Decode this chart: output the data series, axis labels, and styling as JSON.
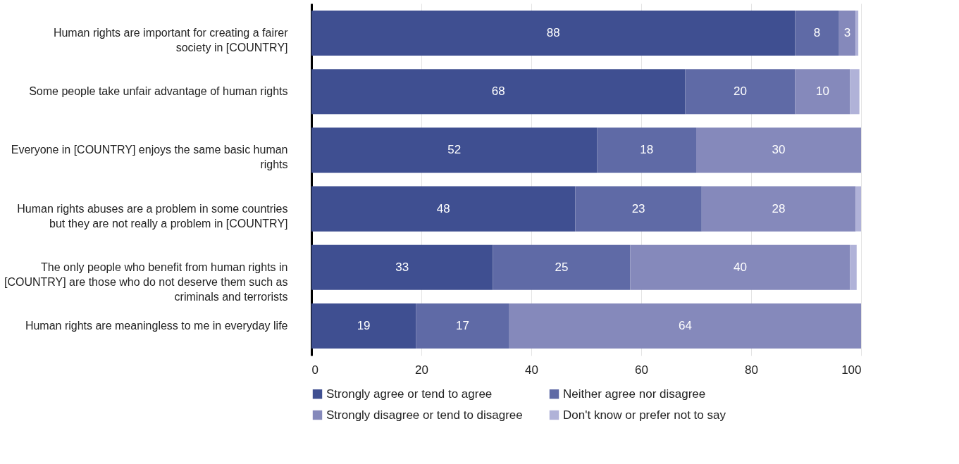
{
  "chart_data": {
    "type": "bar",
    "orientation": "horizontal",
    "stacked": true,
    "categories": [
      "Human rights are important for creating a fairer society in [COUNTRY]",
      "Some people take unfair advantage of human rights",
      "Everyone in [COUNTRY] enjoys the same basic human rights",
      "Human rights abuses are a problem in some countries but they are not really a problem in [COUNTRY]",
      "The only people who benefit from human rights in [COUNTRY] are those who do not deserve them such as criminals and terrorists",
      "Human rights are meaningless to me in everyday life"
    ],
    "series": [
      {
        "name": "Strongly agree or tend to agree",
        "color": "#3f4f91",
        "values": [
          88,
          68,
          52,
          48,
          33,
          19
        ],
        "value_labels": [
          "88",
          "68",
          "52",
          "48",
          "33",
          "19"
        ]
      },
      {
        "name": "Neither agree nor disagree",
        "color": "#5f6aa6",
        "values": [
          8,
          20,
          18,
          23,
          25,
          17
        ],
        "value_labels": [
          "8",
          "20",
          "18",
          "23",
          "25",
          "17"
        ]
      },
      {
        "name": "Strongly disagree or tend to disagree",
        "color": "#8589bb",
        "values": [
          3,
          10,
          30,
          28,
          40,
          64
        ],
        "value_labels": [
          "3",
          "10",
          "30",
          "28",
          "40",
          "64"
        ]
      },
      {
        "name": "Don't know or prefer not to say",
        "color": "#b0b2d8",
        "values": [
          0.5,
          1.7,
          0,
          1,
          1.2,
          0
        ],
        "value_labels": [
          null,
          null,
          null,
          null,
          null,
          null
        ]
      }
    ],
    "xlim": [
      0,
      100
    ],
    "xticks": [
      0,
      20,
      40,
      60,
      80,
      100
    ],
    "grid": "x",
    "legend": "bottom"
  }
}
